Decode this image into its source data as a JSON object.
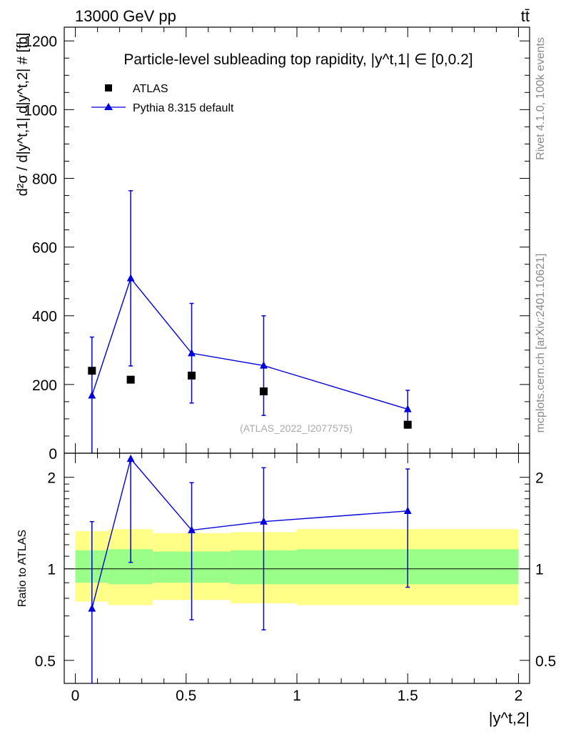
{
  "header": {
    "energy_label": "13000 GeV pp",
    "process_label": "tt̄"
  },
  "side_labels": {
    "rivet": "Rivet 4.1.0,  100k events",
    "mcplots": "mcplots.cern.ch [arXiv:2401.10621]"
  },
  "watermark": "(ATLAS_2022_I2077575)",
  "colors": {
    "mc": "#0000dd",
    "data": "#000000",
    "band_inner": "#99ff88",
    "band_outer": "#ffff88"
  },
  "chart_data": [
    {
      "type": "scatter",
      "panel": "main",
      "title": "Particle-level subleading top rapidity, |y^t,1| ∈ [0,0.2]",
      "ylabel": "d²σ / d|y^t,1| d|y^t,2| # [fb]",
      "xlim": [
        -0.05,
        2.05
      ],
      "ylim": [
        0,
        1240
      ],
      "yticks": [
        0,
        200,
        400,
        600,
        800,
        1000,
        1200
      ],
      "legend_position": "top-left",
      "legend": [
        "ATLAS",
        "Pythia 8.315 default"
      ],
      "bins": [
        [
          0,
          0.15
        ],
        [
          0.15,
          0.35
        ],
        [
          0.35,
          0.7
        ],
        [
          0.7,
          1.0
        ],
        [
          1.0,
          2.0
        ]
      ],
      "series": [
        {
          "name": "ATLAS",
          "marker": "square",
          "x": [
            0.075,
            0.25,
            0.525,
            0.85,
            1.5
          ],
          "values": [
            240,
            214,
            226,
            180,
            83
          ]
        },
        {
          "name": "Pythia 8.315 default",
          "marker": "triangle",
          "x": [
            0.075,
            0.25,
            0.525,
            0.85,
            1.5
          ],
          "values": [
            168,
            509,
            291,
            255,
            128
          ],
          "err_low": [
            168,
            255,
            145,
            145,
            55
          ],
          "err_high": [
            170,
            255,
            145,
            145,
            55
          ]
        }
      ]
    },
    {
      "type": "scatter",
      "panel": "ratio",
      "ylabel": "Ratio to ATLAS",
      "xlabel": "|y^t,2|",
      "xlim": [
        -0.05,
        2.05
      ],
      "ylim": [
        0.42,
        2.4
      ],
      "yticks": [
        0.5,
        1,
        2
      ],
      "xticks": [
        0,
        0.5,
        1,
        1.5,
        2
      ],
      "bands": {
        "bins": [
          [
            0,
            0.15
          ],
          [
            0.15,
            0.35
          ],
          [
            0.35,
            0.7
          ],
          [
            0.7,
            1.0
          ],
          [
            1.0,
            2.0
          ]
        ],
        "inner_low": [
          0.9,
          0.89,
          0.9,
          0.89,
          0.89
        ],
        "inner_high": [
          1.15,
          1.16,
          1.14,
          1.15,
          1.16
        ],
        "outer_low": [
          0.78,
          0.76,
          0.79,
          0.77,
          0.76
        ],
        "outer_high": [
          1.33,
          1.35,
          1.31,
          1.32,
          1.35
        ]
      },
      "series": [
        {
          "name": "Pythia 8.315 default",
          "x": [
            0.075,
            0.25,
            0.525,
            0.85,
            1.5
          ],
          "values": [
            0.74,
            2.3,
            1.34,
            1.43,
            1.55
          ],
          "err_low": [
            0.4,
            1.05,
            0.68,
            0.63,
            0.87
          ],
          "err_high": [
            1.43,
            2.3,
            1.92,
            2.15,
            2.13
          ]
        }
      ]
    }
  ]
}
